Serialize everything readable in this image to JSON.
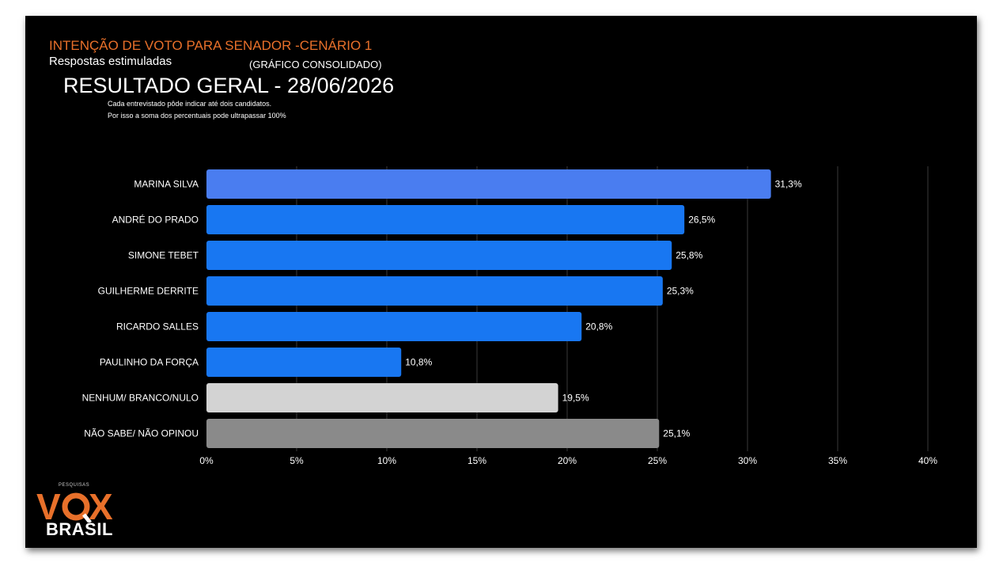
{
  "header": {
    "title": "INTENÇÃO DE VOTO PARA SENADOR  -CENÁRIO 1",
    "subtitle": "Respostas estimuladas",
    "consolidated": "(GRÁFICO CONSOLIDADO)",
    "result": "RESULTADO GERAL - 28/06/2026",
    "note_line1": "Cada entrevistado pôde indicar até dois candidatos.",
    "note_line2": "Por isso a soma dos percentuais pode ultrapassar 100%"
  },
  "logo": {
    "small_text": "PESQUISAS",
    "vox_text": "VOX",
    "brasil_text": "BRASIL"
  },
  "colors": {
    "background": "#000000",
    "title_orange": "#e8702a",
    "gridline": "#3a3a3a",
    "text": "#ffffff"
  },
  "chart_data": {
    "type": "bar",
    "orientation": "horizontal",
    "categories": [
      "MARINA SILVA",
      "ANDRÉ DO PRADO",
      "SIMONE TEBET",
      "GUILHERME DERRITE",
      "RICARDO SALLES",
      "PAULINHO DA FORÇA",
      "NENHUM/ BRANCO/NULO",
      "NÃO SABE/ NÃO OPINOU"
    ],
    "values": [
      31.3,
      26.5,
      25.8,
      25.3,
      20.8,
      10.8,
      19.5,
      25.1
    ],
    "value_labels": [
      "31,3%",
      "26,5%",
      "25,8%",
      "25,3%",
      "20,8%",
      "10,8%",
      "19,5%",
      "25,1%"
    ],
    "bar_colors": [
      "#4a7df0",
      "#1877f2",
      "#1877f2",
      "#1877f2",
      "#1877f2",
      "#1877f2",
      "#d3d3d3",
      "#8a8a8a"
    ],
    "xlim": [
      0,
      40
    ],
    "xticks": [
      0,
      5,
      10,
      15,
      20,
      25,
      30,
      35,
      40
    ],
    "xtick_labels": [
      "0%",
      "5%",
      "10%",
      "15%",
      "20%",
      "25%",
      "30%",
      "35%",
      "40%"
    ],
    "grid": true,
    "legend": "none"
  }
}
